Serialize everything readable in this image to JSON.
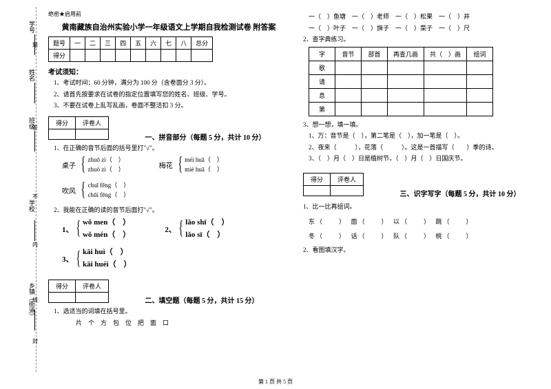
{
  "side": {
    "l1": "学号",
    "l2": "姓名",
    "l3": "班级",
    "l4": "学校",
    "l5": "乡镇（街道）"
  },
  "dash": {
    "d1": "题",
    "d2": "答",
    "d3": "不",
    "d4": "内",
    "d5": "线",
    "d6": "封"
  },
  "secret": "绝密★启用前",
  "title": "黄南藏族自治州实验小学一年级语文上学期自我检测试卷 附答案",
  "score_header": [
    "题号",
    "一",
    "二",
    "三",
    "四",
    "五",
    "六",
    "七",
    "八",
    "总分"
  ],
  "score_row": "得分",
  "notice_h": "考试须知：",
  "notice1": "1、考试时间：60 分钟，满分为 100 分（含卷面分 3 分）。",
  "notice2": "2、请首先按要求在试卷的指定位置填写您的姓名、班级、学号。",
  "notice3": "3、不要在试卷上乱写乱画，卷面不整洁扣 3 分。",
  "sb_h1": "得分",
  "sb_h2": "评卷人",
  "sec1": "一、拼音部分（每题 5 分，共计 10 分）",
  "q1_1": "1、在正确的音节后面的括号里打\"√\"。",
  "g1_label": "桌子",
  "g1_a": "zhuō zi（　）",
  "g1_b": "zhuó zi（　）",
  "g2_label": "梅花",
  "g2_a": "méi huā（　）",
  "g2_b": "mié huā（　）",
  "g3_label": "吹风",
  "g3_a": "chuī fēng（　）",
  "g3_b": "chūi fēng（　）",
  "q1_2": "2、我能在正确的读的音节后面打\"√\"。",
  "b1_n": "1、",
  "b1_a": "wǒ men（　）",
  "b1_b": "wǒ mén（　）",
  "b2_n": "2、",
  "b2_a": "lǎo shī（　）",
  "b2_b": "lǎo sī（　）",
  "b3_n": "3、",
  "b3_a": "kāi huì（　）",
  "b3_b": "kāi huéi（　）",
  "sec2": "二、填空题（每题 5 分，共计 15 分）",
  "q2_1": "1、选适当的词填在括号里。",
  "q2_1w": "片　个　方　包　位　把　面　口",
  "r1": "一（　）鱼塘　一（　）老师　一（　）松果　一（　）井",
  "r2": "一（　）叶子　一（　）旗子　一（　）菜子　一（　）尺",
  "q2_2": "2、查字典练习。",
  "dict_h": [
    "字",
    "音节",
    "部首",
    "再查几画",
    "共（　）画",
    "组词"
  ],
  "dict_rows": [
    "歌",
    "请",
    "息",
    "第"
  ],
  "q2_3": "3、想一想，填一填。",
  "q2_3a": "1、万：音节是（　），第二笔是（　），加一笔是（　）。",
  "q2_3b": "2、夜来（　　　），花落（　　　）。这是一首描写（　　）季的诗。",
  "q2_3c": "3、（　）月（　）日是植树节，（　）月（　）日国庆节。",
  "sec3": "三、识字写字（每题 5 分，共计 10 分）",
  "q3_1": "1、比一比再组词。",
  "q3_1a": "东（　　）　面（　　）　以（　　）　跳（　　）",
  "q3_1b": "冬（　　）　话（　　）　队（　　）　桃（　　）",
  "q3_2": "2、看图填汉字。",
  "pagenum": "第 1 页 共 5 页"
}
